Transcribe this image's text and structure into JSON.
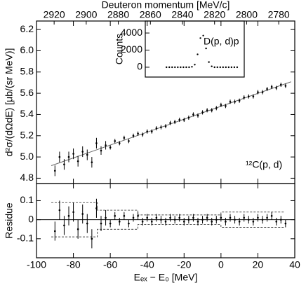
{
  "chart_data": [
    {
      "type": "errorbar",
      "x2label": "Deuteron momentum [MeV/c]",
      "ylabel": "d²σ/(dΩdE) [μb/(sr MeV)]",
      "annotation": "¹²C(p, d)",
      "x": [
        -90,
        -87.5,
        -85,
        -82.5,
        -80,
        -77.5,
        -75,
        -72.5,
        -70,
        -67.5,
        -65,
        -62.5,
        -60,
        -57.5,
        -55,
        -52.5,
        -50,
        -47.5,
        -45,
        -42.5,
        -40,
        -37.5,
        -35,
        -32.5,
        -30,
        -27.5,
        -25,
        -22.5,
        -20,
        -17.5,
        -15,
        -12.5,
        -10,
        -7.5,
        -5,
        -2.5,
        0,
        2.5,
        5,
        7.5,
        10,
        12.5,
        15,
        17.5,
        20,
        22.5,
        25,
        27.5,
        30,
        32.5,
        35
      ],
      "values": [
        4.87,
        5.0,
        4.93,
        5.0,
        5.03,
        4.96,
        5.05,
        5.02,
        4.95,
        5.13,
        5.06,
        5.11,
        5.09,
        5.15,
        5.13,
        5.18,
        5.15,
        5.2,
        5.22,
        5.21,
        5.24,
        5.24,
        5.27,
        5.28,
        5.29,
        5.32,
        5.33,
        5.35,
        5.35,
        5.37,
        5.4,
        5.39,
        5.42,
        5.44,
        5.44,
        5.46,
        5.49,
        5.48,
        5.52,
        5.52,
        5.53,
        5.56,
        5.57,
        5.57,
        5.61,
        5.61,
        5.64,
        5.66,
        5.65,
        5.68,
        5.67
      ],
      "errors": [
        0.05,
        0.05,
        0.05,
        0.05,
        0.05,
        0.05,
        0.05,
        0.05,
        0.05,
        0.05,
        0.04,
        0.04,
        0.02,
        0.02,
        0.02,
        0.02,
        0.02,
        0.02,
        0.02,
        0.02,
        0.02,
        0.02,
        0.02,
        0.02,
        0.02,
        0.02,
        0.02,
        0.02,
        0.02,
        0.02,
        0.02,
        0.02,
        0.02,
        0.02,
        0.02,
        0.02,
        0.02,
        0.02,
        0.02,
        0.02,
        0.02,
        0.02,
        0.02,
        0.02,
        0.02,
        0.02,
        0.02,
        0.02,
        0.02,
        0.02,
        0.02
      ],
      "fit": {
        "x": [
          -92,
          38
        ],
        "values": [
          4.918,
          5.708
        ]
      },
      "color": "#000000",
      "xlim": [
        -100,
        40
      ],
      "xticks": [
        -100,
        -80,
        -60,
        -40,
        -20,
        0,
        20,
        40
      ],
      "ylim": [
        4.75,
        6.28
      ],
      "yticks": [
        4.8,
        {
          "value": 5,
          "label": "5.0"
        },
        5.2,
        5.4,
        5.6,
        5.8,
        {
          "value": 6,
          "label": "6.0"
        },
        6.2
      ],
      "x2lim": [
        2931,
        2770
      ],
      "x2ticks": [
        2920,
        2900,
        2880,
        2860,
        2840,
        2820,
        2800,
        2780
      ]
    },
    {
      "type": "errorbar",
      "xlabel": "Eₑₓ − E₀ [MeV]",
      "ylabel": "Residue",
      "x": [
        -90,
        -87.5,
        -85,
        -82.5,
        -80,
        -77.5,
        -75,
        -72.5,
        -70,
        -67.5,
        -65,
        -62.5,
        -60,
        -57.5,
        -55,
        -52.5,
        -50,
        -47.5,
        -45,
        -42.5,
        -40,
        -37.5,
        -35,
        -32.5,
        -30,
        -27.5,
        -25,
        -22.5,
        -20,
        -17.5,
        -15,
        -12.5,
        -10,
        -7.5,
        -5,
        -2.5,
        0,
        2.5,
        5,
        7.5,
        10,
        12.5,
        15,
        17.5,
        20,
        22.5,
        25,
        27.5,
        30,
        32.5,
        35
      ],
      "values": [
        -0.06,
        0.05,
        -0.03,
        0.02,
        0.04,
        -0.05,
        0.03,
        -0.02,
        -0.1,
        0.06,
        -0.02,
        0.01,
        -0.02,
        0.02,
        -0.01,
        0.02,
        -0.02,
        0.01,
        0.02,
        -0.01,
        0.01,
        -0.01,
        0.01,
        0,
        -0.01,
        0.01,
        0,
        0.01,
        -0.01,
        0,
        0.01,
        -0.01,
        0,
        0.01,
        -0.01,
        0,
        0.01,
        -0.01,
        0.01,
        0,
        -0.01,
        0.01,
        0,
        -0.01,
        0.01,
        0,
        0.01,
        0.02,
        -0.01,
        0,
        -0.02
      ],
      "errors": [
        0.05,
        0.05,
        0.05,
        0.05,
        0.05,
        0.05,
        0.05,
        0.05,
        0.05,
        0.05,
        0.04,
        0.04,
        0.02,
        0.02,
        0.02,
        0.02,
        0.02,
        0.02,
        0.02,
        0.02,
        0.02,
        0.02,
        0.02,
        0.02,
        0.02,
        0.02,
        0.02,
        0.02,
        0.02,
        0.02,
        0.02,
        0.02,
        0.02,
        0.02,
        0.02,
        0.02,
        0.02,
        0.02,
        0.02,
        0.02,
        0.02,
        0.02,
        0.02,
        0.02,
        0.02,
        0.02,
        0.02,
        0.02,
        0.02,
        0.02,
        0.02
      ],
      "envelope": {
        "x": [
          -92,
          -67,
          -67,
          -45,
          -45,
          0,
          0,
          34
        ],
        "upper": [
          0.09,
          0.09,
          0.05,
          0.05,
          0.025,
          0.025,
          0.04,
          0.04
        ],
        "lower": [
          -0.09,
          -0.09,
          -0.05,
          -0.05,
          -0.025,
          -0.025,
          -0.04,
          -0.04
        ]
      },
      "color": "#000000",
      "xlim": [
        -100,
        40
      ],
      "xticks": [
        -100,
        -80,
        -60,
        -40,
        -20,
        0,
        20,
        40
      ],
      "ylim": [
        -0.2,
        0.19
      ],
      "yticks": [
        -0.1,
        0,
        0.1
      ]
    },
    {
      "type": "scatter",
      "ylabel": "Counts",
      "annotation": "D(p, d)p",
      "x": [
        0,
        2,
        4,
        6,
        8,
        10,
        12,
        14,
        16,
        18,
        20,
        22,
        24,
        26,
        28,
        30,
        32,
        34,
        36,
        38,
        40,
        42,
        44,
        46,
        48,
        50
      ],
      "values": [
        0,
        0,
        0,
        0,
        0,
        0,
        0,
        0,
        0,
        50,
        300,
        1500,
        3400,
        3700,
        2200,
        600,
        100,
        0,
        0,
        0,
        0,
        0,
        0,
        0,
        0,
        0
      ],
      "color": "#000000",
      "xlim": [
        -15,
        55
      ],
      "ylim": [
        -1150,
        5400
      ],
      "yticks": [
        0,
        2000,
        4000
      ]
    }
  ]
}
